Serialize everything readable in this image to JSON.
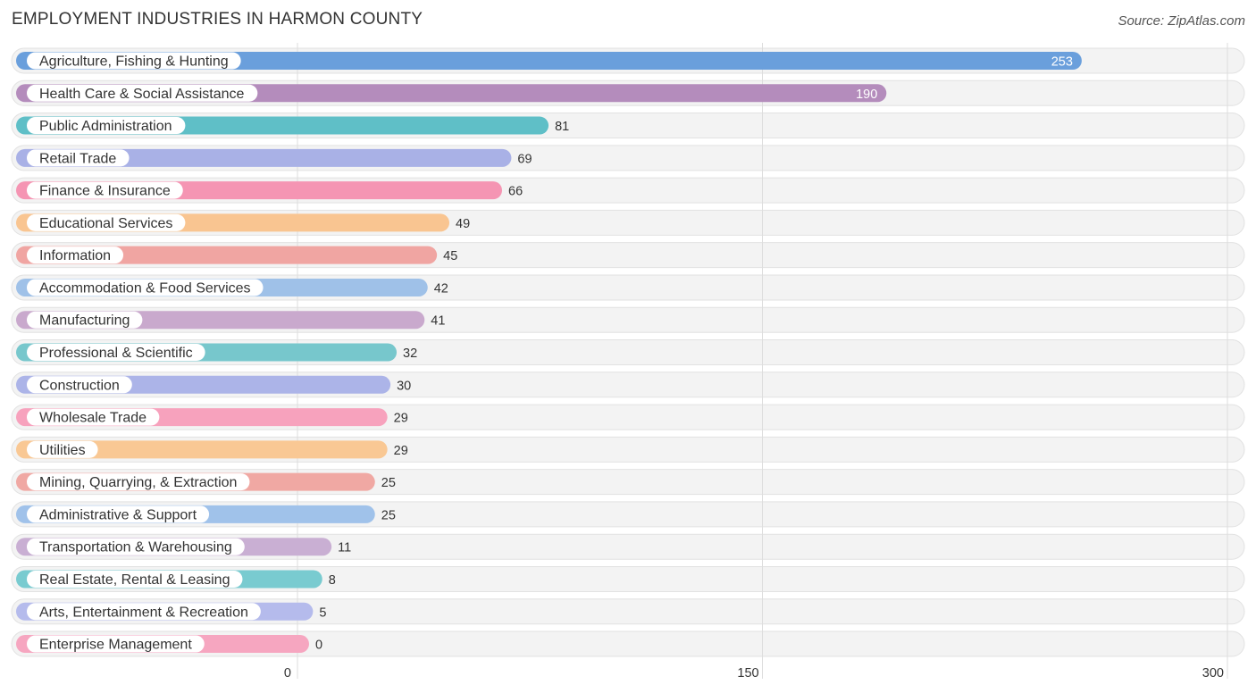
{
  "header": {
    "title": "EMPLOYMENT INDUSTRIES IN HARMON COUNTY",
    "source": "Source: ZipAtlas.com"
  },
  "chart_data": {
    "type": "bar",
    "orientation": "horizontal",
    "title": "EMPLOYMENT INDUSTRIES IN HARMON COUNTY",
    "xlabel": "",
    "ylabel": "",
    "xlim": [
      0,
      300
    ],
    "xticks": [
      0,
      150,
      300
    ],
    "grid": true,
    "categories": [
      "Agriculture, Fishing & Hunting",
      "Health Care & Social Assistance",
      "Public Administration",
      "Retail Trade",
      "Finance & Insurance",
      "Educational Services",
      "Information",
      "Accommodation & Food Services",
      "Manufacturing",
      "Professional & Scientific",
      "Construction",
      "Wholesale Trade",
      "Utilities",
      "Mining, Quarrying, & Extraction",
      "Administrative & Support",
      "Transportation & Warehousing",
      "Real Estate, Rental & Leasing",
      "Arts, Entertainment & Recreation",
      "Enterprise Management"
    ],
    "values": [
      253,
      190,
      81,
      69,
      66,
      49,
      45,
      42,
      41,
      32,
      30,
      29,
      29,
      25,
      25,
      11,
      8,
      5,
      0
    ],
    "colors": [
      "#6a9fdc",
      "#b48cbc",
      "#5fbfc7",
      "#a9b1e6",
      "#f595b3",
      "#f9c591",
      "#f0a5a2",
      "#9fc1e8",
      "#c9a9cd",
      "#77c7cc",
      "#acb4e8",
      "#f7a2bd",
      "#f9c894",
      "#f0a8a3",
      "#a0c2ea",
      "#c9afd3",
      "#79cbd0",
      "#b5bbec",
      "#f6a6c0"
    ]
  }
}
